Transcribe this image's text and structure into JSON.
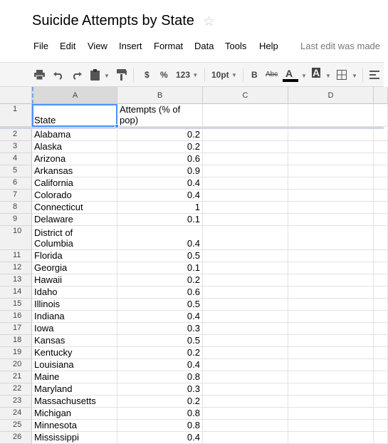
{
  "title": "Suicide Attempts by State",
  "menu": [
    "File",
    "Edit",
    "View",
    "Insert",
    "Format",
    "Data",
    "Tools",
    "Help"
  ],
  "last_edit": "Last edit was made",
  "toolbar": {
    "currency": "$",
    "percent": "%",
    "number_format": "123",
    "font_size": "10pt",
    "bold": "B",
    "strike": "Abc",
    "text_color": "A",
    "fill_color": "A"
  },
  "columns": [
    "A",
    "B",
    "C",
    "D"
  ],
  "header_row": {
    "number": "1",
    "a": "State",
    "b": "Attempts (% of pop)"
  },
  "rows": [
    {
      "n": "2",
      "state": "Alabama",
      "value": "0.2"
    },
    {
      "n": "3",
      "state": "Alaska",
      "value": "0.2"
    },
    {
      "n": "4",
      "state": "Arizona",
      "value": "0.6"
    },
    {
      "n": "5",
      "state": "Arkansas",
      "value": "0.9"
    },
    {
      "n": "6",
      "state": "California",
      "value": "0.4"
    },
    {
      "n": "7",
      "state": "Colorado",
      "value": "0.4"
    },
    {
      "n": "8",
      "state": "Connecticut",
      "value": "1"
    },
    {
      "n": "9",
      "state": "Delaware",
      "value": "0.1"
    },
    {
      "n": "10",
      "state": "District of Columbia",
      "value": "0.4"
    },
    {
      "n": "11",
      "state": "Florida",
      "value": "0.5"
    },
    {
      "n": "12",
      "state": "Georgia",
      "value": "0.1"
    },
    {
      "n": "13",
      "state": "Hawaii",
      "value": "0.2"
    },
    {
      "n": "14",
      "state": "Idaho",
      "value": "0.6"
    },
    {
      "n": "15",
      "state": "Illinois",
      "value": "0.5"
    },
    {
      "n": "16",
      "state": "Indiana",
      "value": "0.4"
    },
    {
      "n": "17",
      "state": "Iowa",
      "value": "0.3"
    },
    {
      "n": "18",
      "state": "Kansas",
      "value": "0.5"
    },
    {
      "n": "19",
      "state": "Kentucky",
      "value": "0.2"
    },
    {
      "n": "20",
      "state": "Louisiana",
      "value": "0.4"
    },
    {
      "n": "21",
      "state": "Maine",
      "value": "0.8"
    },
    {
      "n": "22",
      "state": "Maryland",
      "value": "0.3"
    },
    {
      "n": "23",
      "state": "Massachusetts",
      "value": "0.2"
    },
    {
      "n": "24",
      "state": "Michigan",
      "value": "0.8"
    },
    {
      "n": "25",
      "state": "Minnesota",
      "value": "0.8"
    },
    {
      "n": "26",
      "state": "Mississippi",
      "value": "0.4"
    }
  ]
}
